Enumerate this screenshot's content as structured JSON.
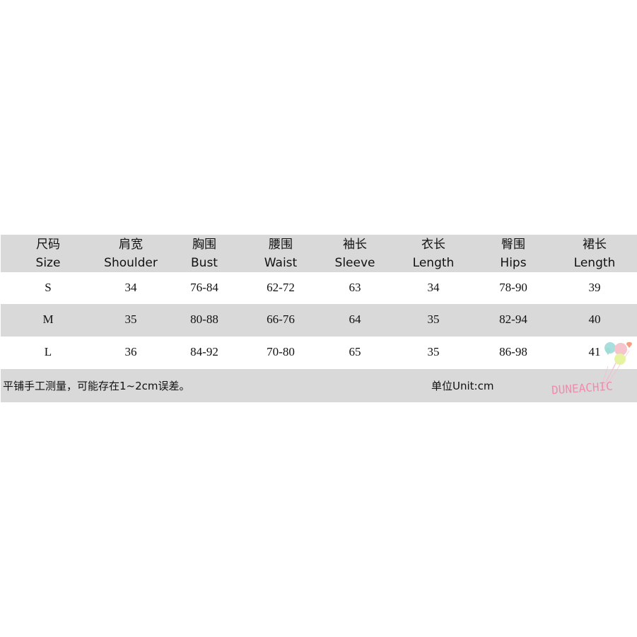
{
  "columns": [
    {
      "zh": "尺码",
      "en": "Size"
    },
    {
      "zh": "肩宽",
      "en": "Shoulder"
    },
    {
      "zh": "胸围",
      "en": "Bust"
    },
    {
      "zh": "腰围",
      "en": "Waist"
    },
    {
      "zh": "袖长",
      "en": "Sleeve"
    },
    {
      "zh": "衣长",
      "en": "Length"
    },
    {
      "zh": "臀围",
      "en": "Hips"
    },
    {
      "zh": "裙长",
      "en": "Length"
    }
  ],
  "rows": [
    [
      "S",
      "34",
      "76-84",
      "62-72",
      "63",
      "34",
      "78-90",
      "39"
    ],
    [
      "M",
      "35",
      "80-88",
      "66-76",
      "64",
      "35",
      "82-94",
      "40"
    ],
    [
      "L",
      "36",
      "84-92",
      "70-80",
      "65",
      "35",
      "86-98",
      "41"
    ]
  ],
  "footer": {
    "note": "平铺手工测量，可能存在1~2cm误差。",
    "unit": "单位Unit:cm"
  },
  "logo": {
    "text": "DUNEACHIC"
  },
  "colors": {
    "stripe": "#d9d9d9",
    "logo_pink": "#f08cab"
  }
}
